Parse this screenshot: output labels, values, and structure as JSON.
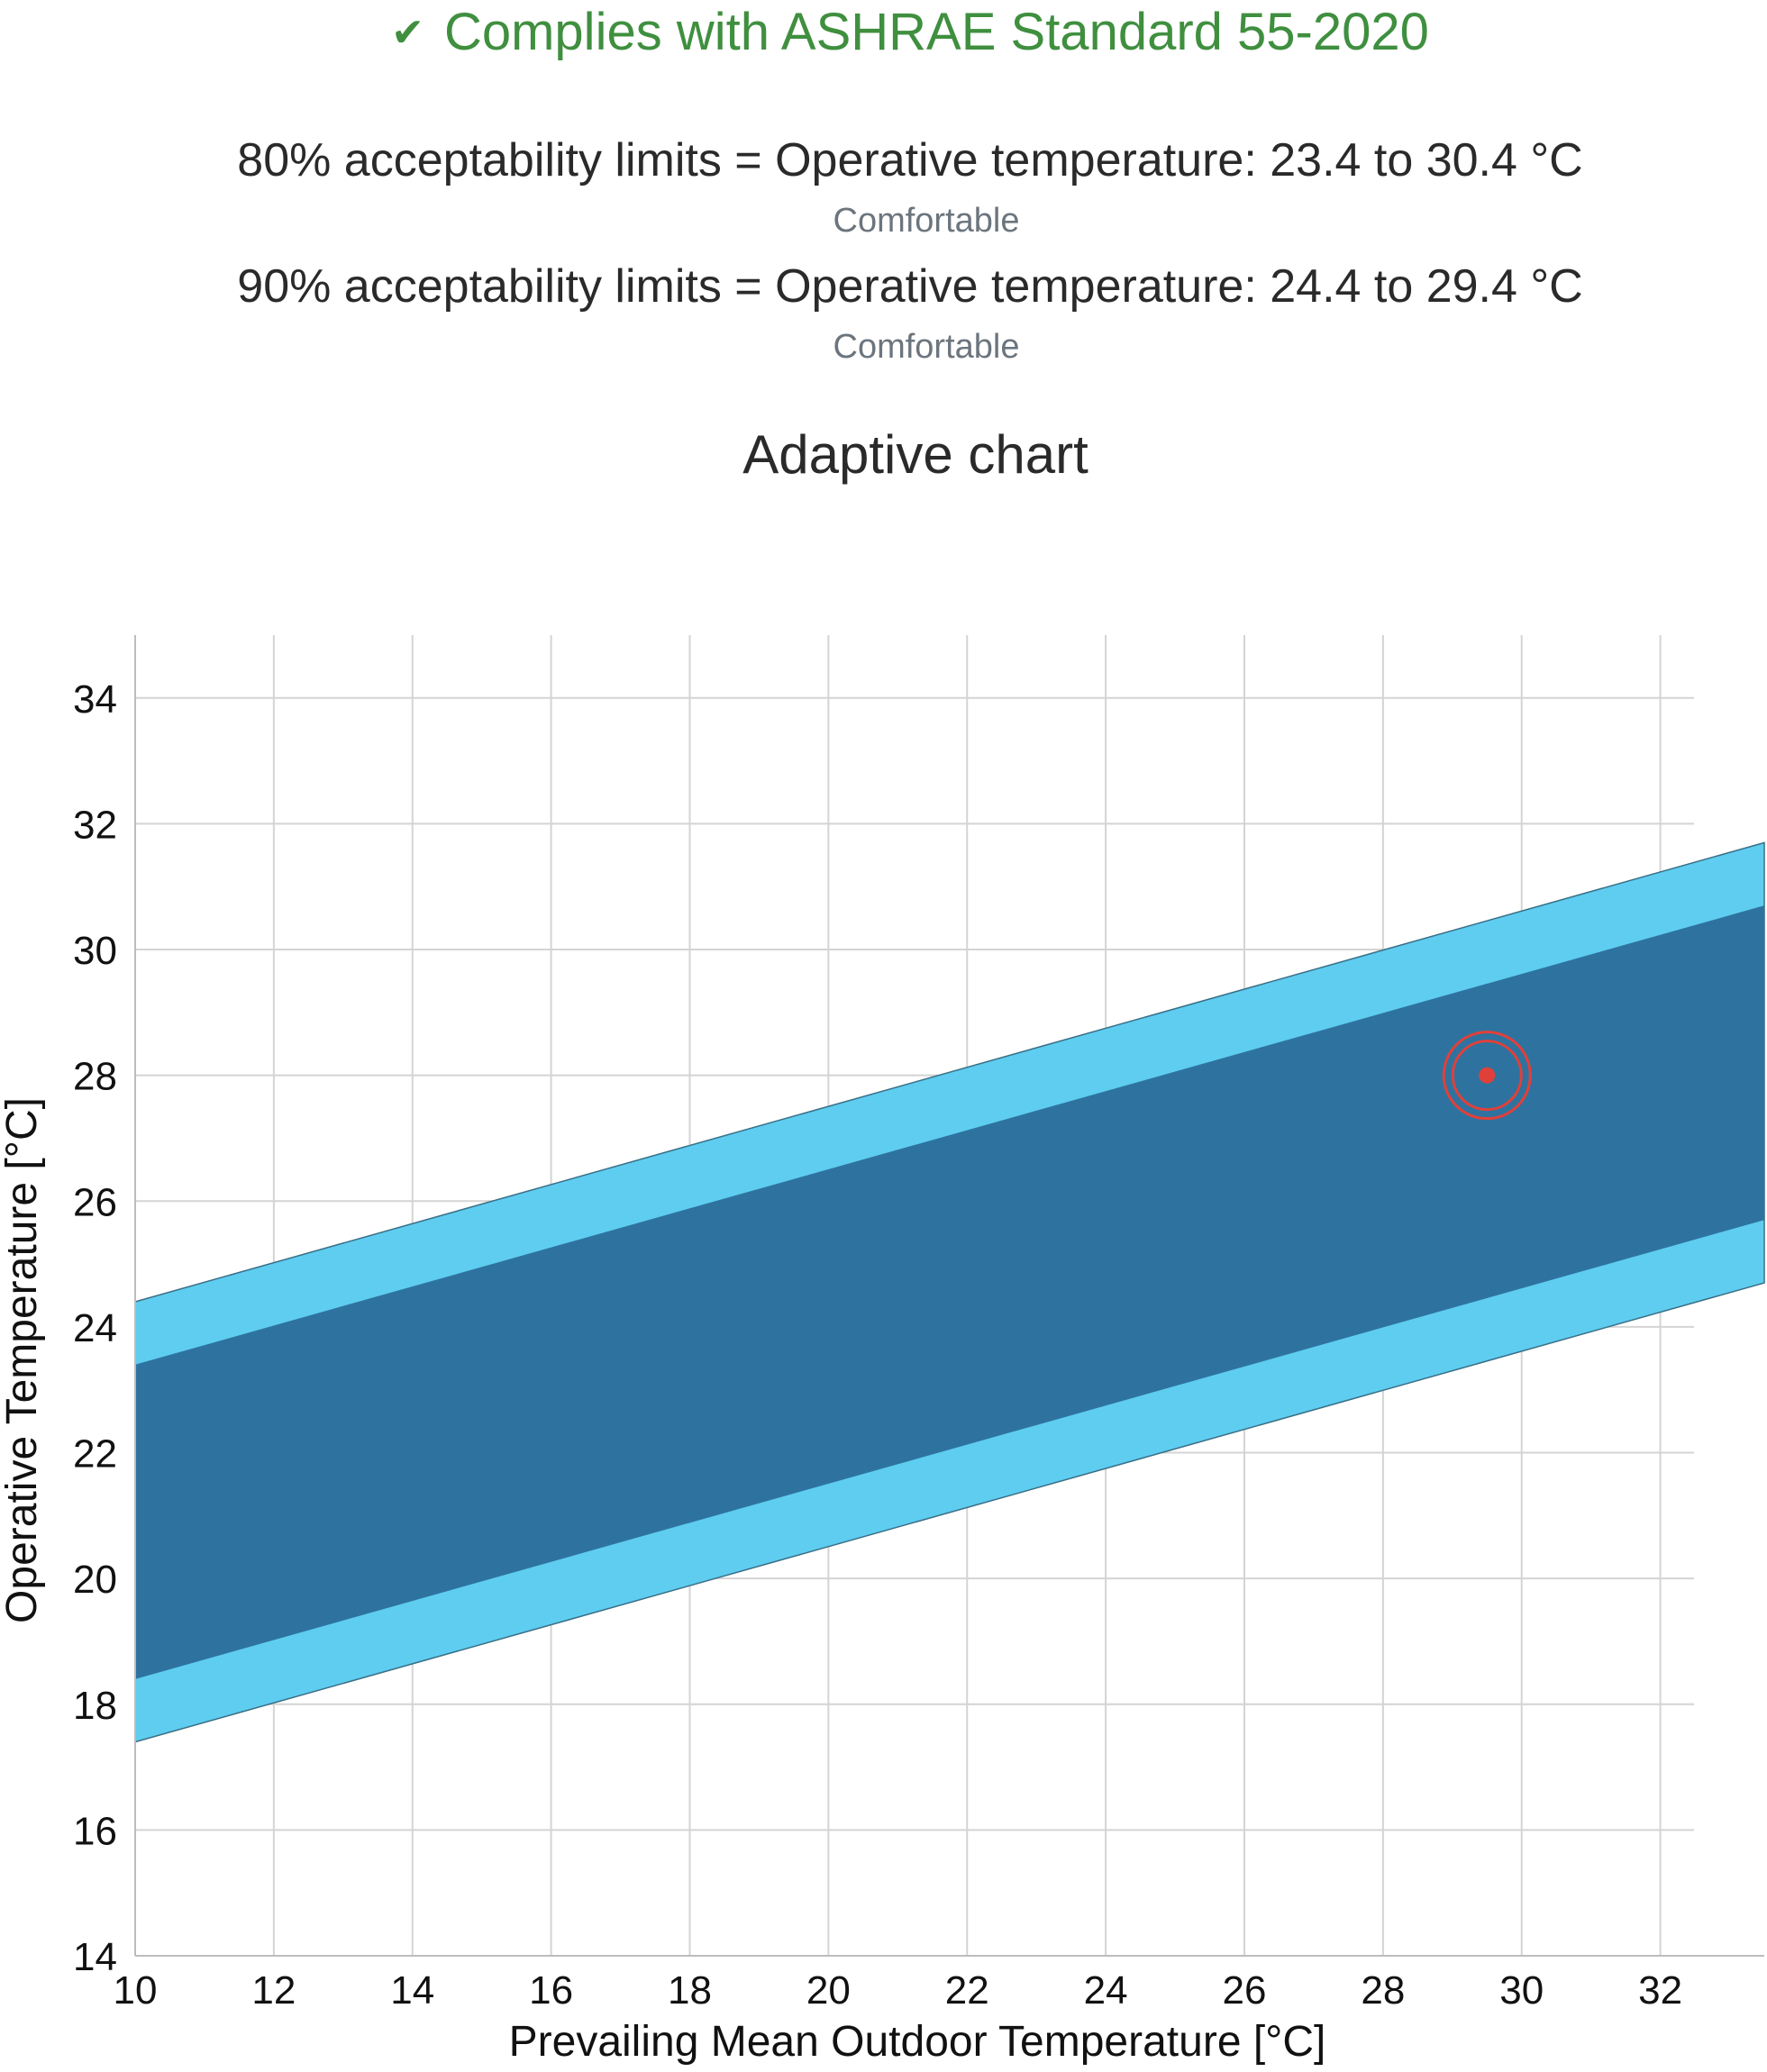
{
  "compliance": {
    "icon": "check-icon",
    "text": "Complies with ASHRAE Standard 55-2020",
    "color": "#3f8f3f"
  },
  "limits": [
    {
      "text": "80% acceptability limits = Operative temperature: 23.4 to 30.4 °C",
      "status": "Comfortable"
    },
    {
      "text": "90% acceptability limits = Operative temperature: 24.4 to 29.4 °C",
      "status": "Comfortable"
    }
  ],
  "chart_title": "Adaptive chart",
  "chart_data": {
    "type": "area",
    "xlabel": "Prevailing Mean Outdoor Temperature [°C]",
    "ylabel": "Operative Temperature [°C]",
    "xlim": [
      10,
      33.5
    ],
    "ylim": [
      14,
      35
    ],
    "xticks": [
      10,
      12,
      14,
      16,
      18,
      20,
      22,
      24,
      26,
      28,
      30,
      32
    ],
    "yticks": [
      14,
      16,
      18,
      20,
      22,
      24,
      26,
      28,
      30,
      32,
      34
    ],
    "grid": true,
    "bands": [
      {
        "name": "80% acceptability",
        "color": "#5ecdf0",
        "x": [
          10,
          33.5
        ],
        "upper": [
          24.4,
          31.7
        ],
        "lower": [
          17.4,
          24.7
        ]
      },
      {
        "name": "90% acceptability",
        "color": "#2e739f",
        "x": [
          10,
          33.5
        ],
        "upper": [
          23.4,
          30.7
        ],
        "lower": [
          18.4,
          25.7
        ]
      }
    ],
    "point": {
      "x": 29.5,
      "y": 28,
      "color": "#e0403a"
    }
  }
}
